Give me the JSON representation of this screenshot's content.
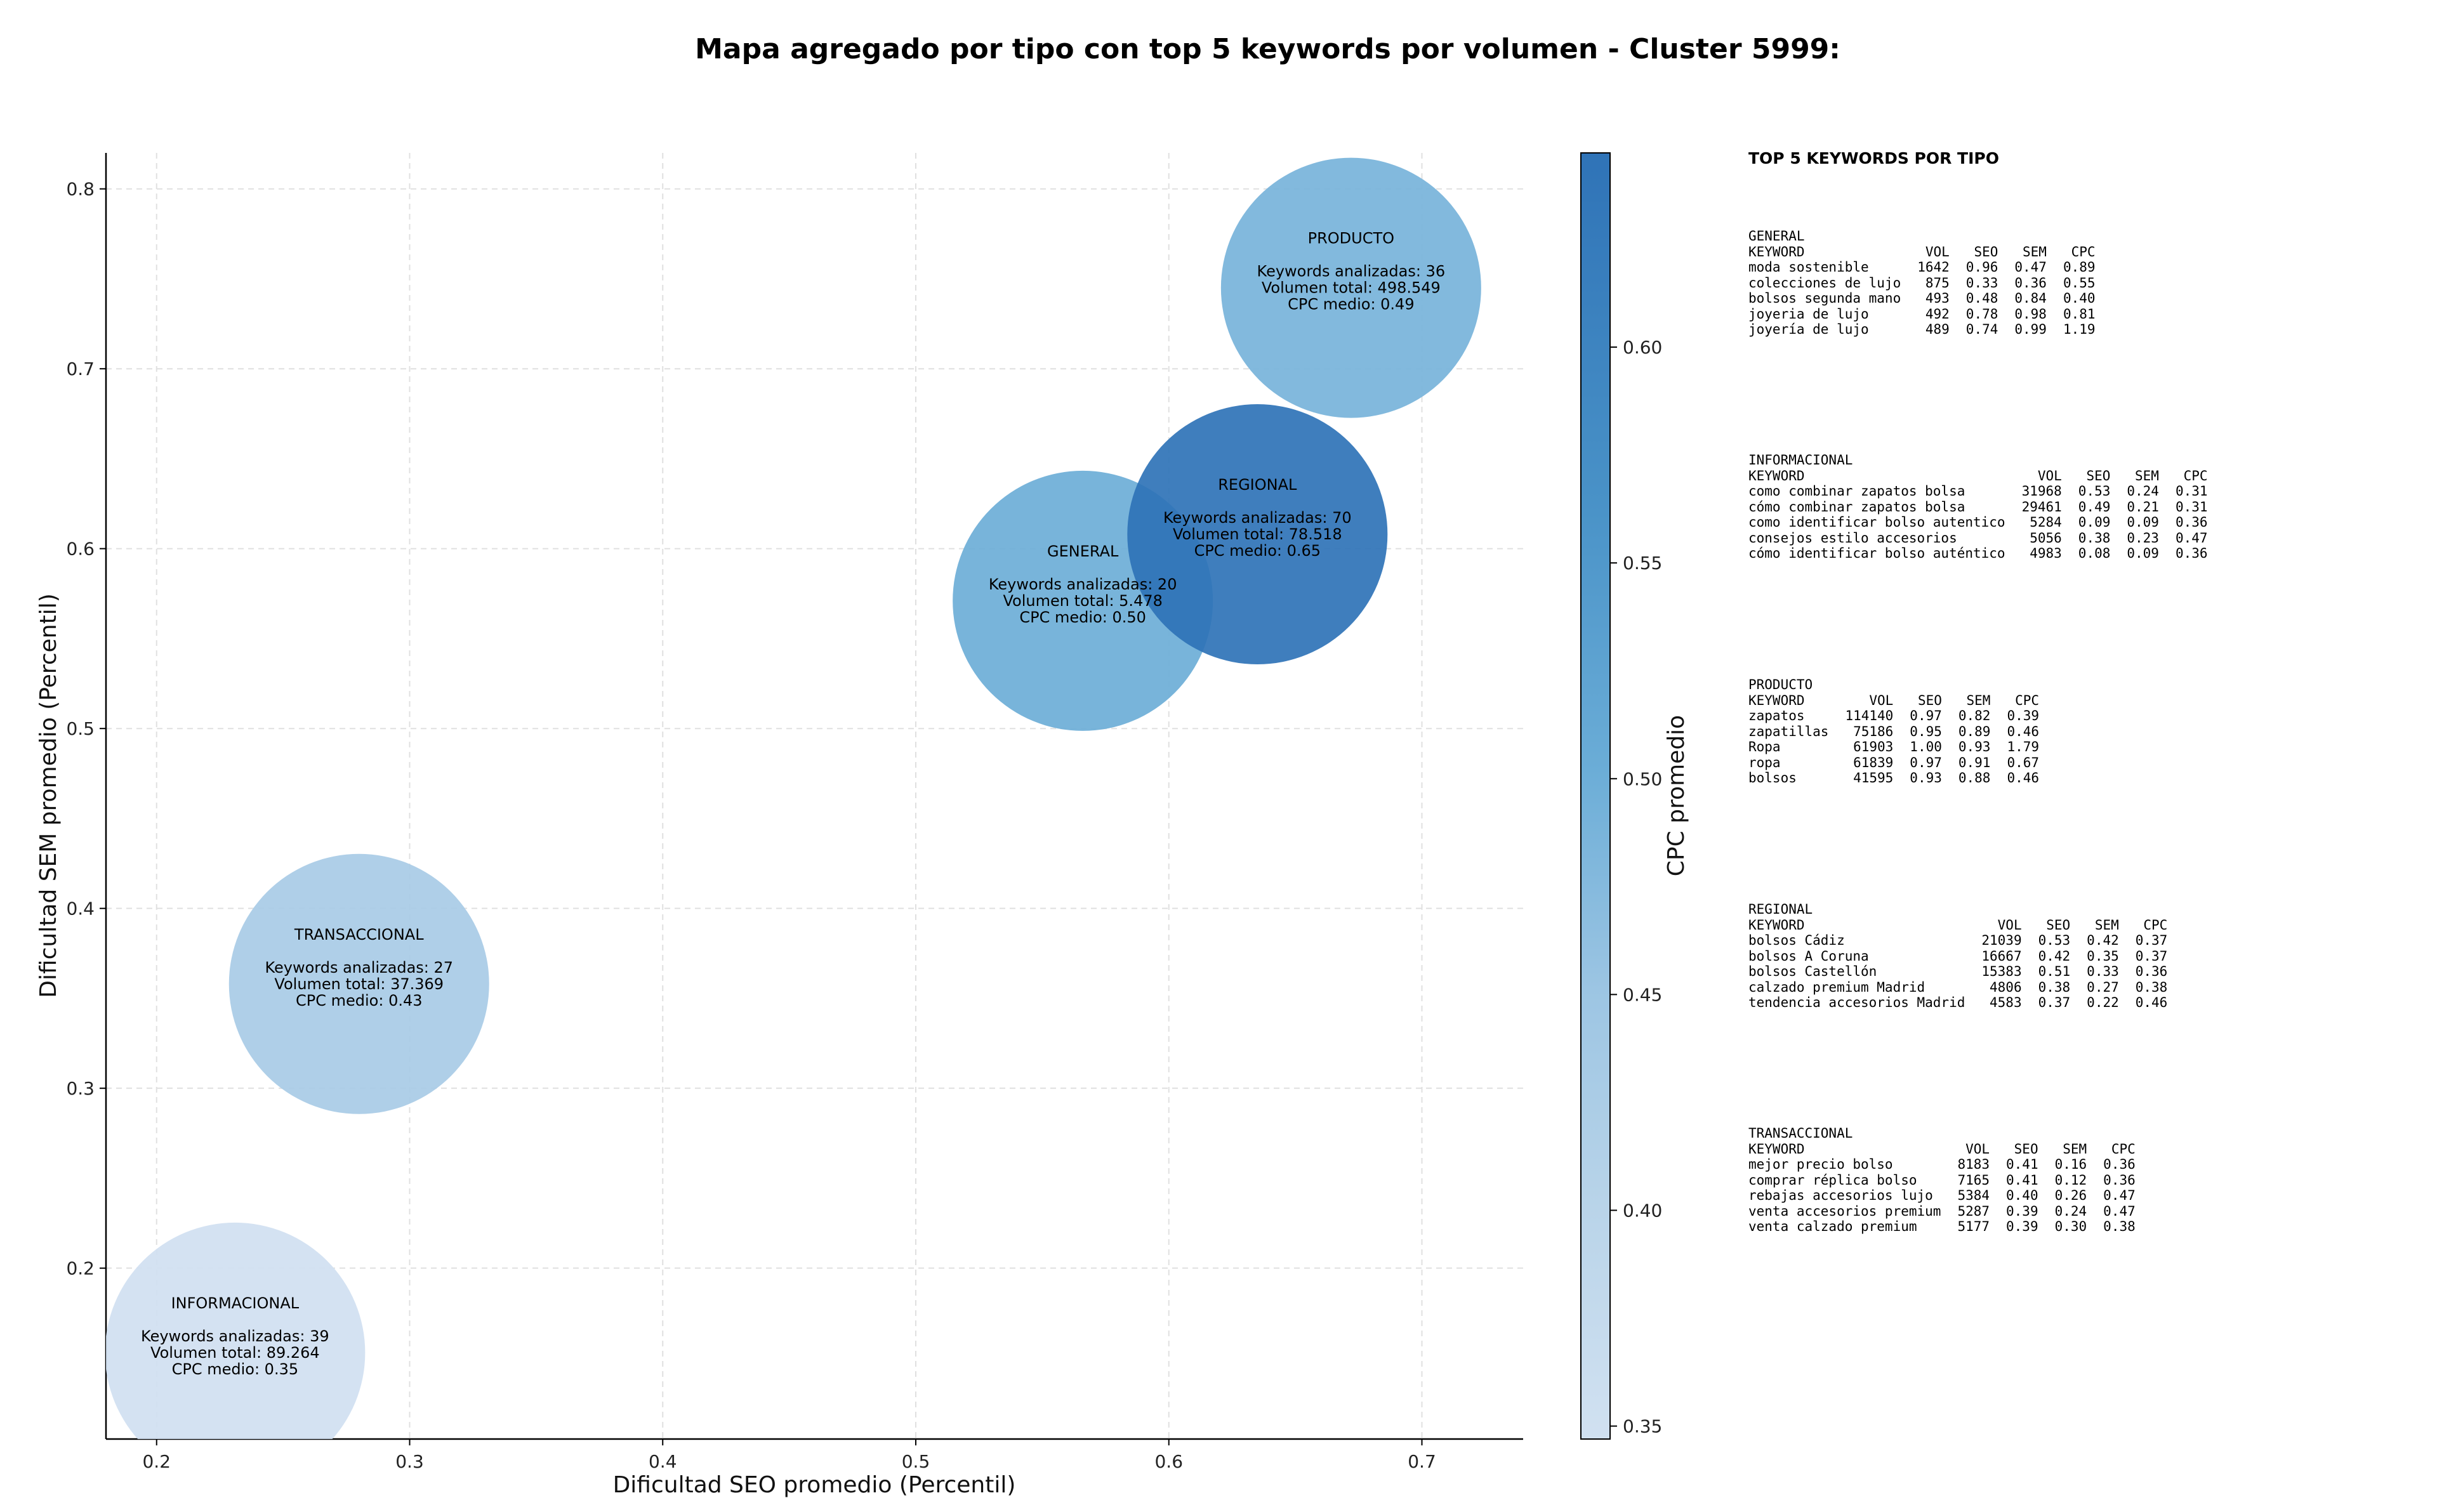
{
  "chart_data": {
    "type": "scatter",
    "title": "Mapa agregado por tipo con top 5 keywords por volumen - Cluster 5999:",
    "xlabel": "Dificultad SEO promedio (Percentil)",
    "ylabel": "Dificultad SEM promedio (Percentil)",
    "xlim": [
      0.18,
      0.74
    ],
    "ylim": [
      0.105,
      0.82
    ],
    "xticks": [
      "0.2",
      "0.3",
      "0.4",
      "0.5",
      "0.6",
      "0.7"
    ],
    "yticks": [
      "0.2",
      "0.3",
      "0.4",
      "0.5",
      "0.6",
      "0.7",
      "0.8"
    ],
    "grid": true,
    "colorbar": {
      "label": "CPC promedio",
      "range": [
        0.347,
        0.645
      ],
      "ticks": [
        "0.35",
        "0.40",
        "0.45",
        "0.50",
        "0.55",
        "0.60"
      ]
    },
    "bubbles": [
      {
        "name": "PRODUCTO",
        "x": 0.672,
        "y": 0.745,
        "keywords": "Keywords analizadas: 36",
        "volumen": "Volumen total: 498.549",
        "cpc_text": "CPC medio: 0.49",
        "cpc": 0.49
      },
      {
        "name": "GENERAL",
        "x": 0.566,
        "y": 0.571,
        "keywords": "Keywords analizadas: 20",
        "volumen": "Volumen total: 5.478",
        "cpc_text": "CPC medio: 0.50",
        "cpc": 0.5
      },
      {
        "name": "REGIONAL",
        "x": 0.635,
        "y": 0.608,
        "keywords": "Keywords analizadas: 70",
        "volumen": "Volumen total: 78.518",
        "cpc_text": "CPC medio: 0.65",
        "cpc": 0.65
      },
      {
        "name": "TRANSACCIONAL",
        "x": 0.28,
        "y": 0.358,
        "keywords": "Keywords analizadas: 27",
        "volumen": "Volumen total: 37.369",
        "cpc_text": "CPC medio: 0.43",
        "cpc": 0.43
      },
      {
        "name": "INFORMACIONAL",
        "x": 0.231,
        "y": 0.153,
        "keywords": "Keywords analizadas: 39",
        "volumen": "Volumen total: 89.264",
        "cpc_text": "CPC medio: 0.35",
        "cpc": 0.35
      }
    ]
  },
  "side_panel": {
    "title": "TOP 5 KEYWORDS POR TIPO",
    "columns": [
      "KEYWORD",
      "VOL",
      "SEO",
      "SEM",
      "CPC"
    ],
    "groups": [
      {
        "name": "GENERAL",
        "rows": [
          [
            "moda sostenible",
            "1642",
            "0.96",
            "0.47",
            "0.89"
          ],
          [
            "colecciones de lujo",
            "875",
            "0.33",
            "0.36",
            "0.55"
          ],
          [
            "bolsos segunda mano",
            "493",
            "0.48",
            "0.84",
            "0.40"
          ],
          [
            "joyeria de lujo",
            "492",
            "0.78",
            "0.98",
            "0.81"
          ],
          [
            "joyería de lujo",
            "489",
            "0.74",
            "0.99",
            "1.19"
          ]
        ]
      },
      {
        "name": "INFORMACIONAL",
        "rows": [
          [
            "como combinar zapatos bolsa",
            "31968",
            "0.53",
            "0.24",
            "0.31"
          ],
          [
            "cómo combinar zapatos bolsa",
            "29461",
            "0.49",
            "0.21",
            "0.31"
          ],
          [
            "como identificar bolso autentico",
            "5284",
            "0.09",
            "0.09",
            "0.36"
          ],
          [
            "consejos estilo accesorios",
            "5056",
            "0.38",
            "0.23",
            "0.47"
          ],
          [
            "cómo identificar bolso auténtico",
            "4983",
            "0.08",
            "0.09",
            "0.36"
          ]
        ]
      },
      {
        "name": "PRODUCTO",
        "rows": [
          [
            "zapatos",
            "114140",
            "0.97",
            "0.82",
            "0.39"
          ],
          [
            "zapatillas",
            "75186",
            "0.95",
            "0.89",
            "0.46"
          ],
          [
            "Ropa",
            "61903",
            "1.00",
            "0.93",
            "1.79"
          ],
          [
            "ropa",
            "61839",
            "0.97",
            "0.91",
            "0.67"
          ],
          [
            "bolsos",
            "41595",
            "0.93",
            "0.88",
            "0.46"
          ]
        ]
      },
      {
        "name": "REGIONAL",
        "rows": [
          [
            "bolsos Cádiz",
            "21039",
            "0.53",
            "0.42",
            "0.37"
          ],
          [
            "bolsos A Coruna",
            "16667",
            "0.42",
            "0.35",
            "0.37"
          ],
          [
            "bolsos Castellón",
            "15383",
            "0.51",
            "0.33",
            "0.36"
          ],
          [
            "calzado premium Madrid",
            "4806",
            "0.38",
            "0.27",
            "0.38"
          ],
          [
            "tendencia accesorios Madrid",
            "4583",
            "0.37",
            "0.22",
            "0.46"
          ]
        ]
      },
      {
        "name": "TRANSACCIONAL",
        "rows": [
          [
            "mejor precio bolso",
            "8183",
            "0.41",
            "0.16",
            "0.36"
          ],
          [
            "comprar réplica bolso",
            "7165",
            "0.41",
            "0.12",
            "0.36"
          ],
          [
            "rebajas accesorios lujo",
            "5384",
            "0.40",
            "0.26",
            "0.47"
          ],
          [
            "venta accesorios premium",
            "5287",
            "0.39",
            "0.24",
            "0.47"
          ],
          [
            "venta calzado premium",
            "5177",
            "0.39",
            "0.30",
            "0.38"
          ]
        ]
      }
    ]
  }
}
